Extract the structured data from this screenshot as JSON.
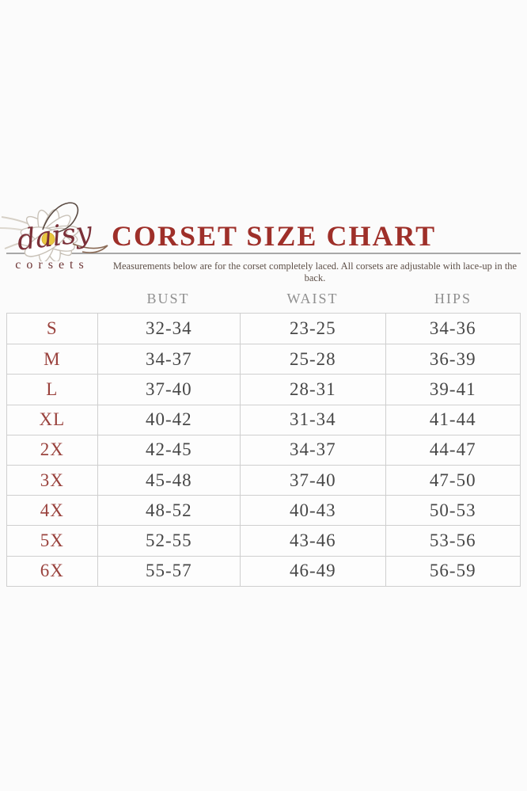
{
  "logo": {
    "script_text": "daisy",
    "sub_text": "corsets"
  },
  "colors": {
    "background": "#fbfbfb",
    "cell_background": "#fdfdfd",
    "title": "#9e2f29",
    "subtitle": "#5d4f47",
    "rule": "#a8a8a8",
    "column_header": "#8f8f8f",
    "table_border": "#cfcfcf",
    "value": "#474747",
    "size_label": "#9a423d",
    "logo_script": "#7b3038",
    "logo_sub": "#6e3636",
    "daisy_center": "#e9c73f",
    "petal_stroke": "#c9c2b8"
  },
  "chart_data": {
    "type": "table",
    "title": "CORSET SIZE CHART",
    "subtitle": "Measurements below are for the corset completely laced. All corsets are adjustable with lace-up in the back.",
    "columns": [
      "BUST",
      "WAIST",
      "HIPS"
    ],
    "rows": [
      {
        "size": "S",
        "bust": "32-34",
        "waist": "23-25",
        "hips": "34-36"
      },
      {
        "size": "M",
        "bust": "34-37",
        "waist": "25-28",
        "hips": "36-39"
      },
      {
        "size": "L",
        "bust": "37-40",
        "waist": "28-31",
        "hips": "39-41"
      },
      {
        "size": "XL",
        "bust": "40-42",
        "waist": "31-34",
        "hips": "41-44"
      },
      {
        "size": "2X",
        "bust": "42-45",
        "waist": "34-37",
        "hips": "44-47"
      },
      {
        "size": "3X",
        "bust": "45-48",
        "waist": "37-40",
        "hips": "47-50"
      },
      {
        "size": "4X",
        "bust": "48-52",
        "waist": "40-43",
        "hips": "50-53"
      },
      {
        "size": "5X",
        "bust": "52-55",
        "waist": "43-46",
        "hips": "53-56"
      },
      {
        "size": "6X",
        "bust": "55-57",
        "waist": "46-49",
        "hips": "56-59"
      }
    ]
  }
}
